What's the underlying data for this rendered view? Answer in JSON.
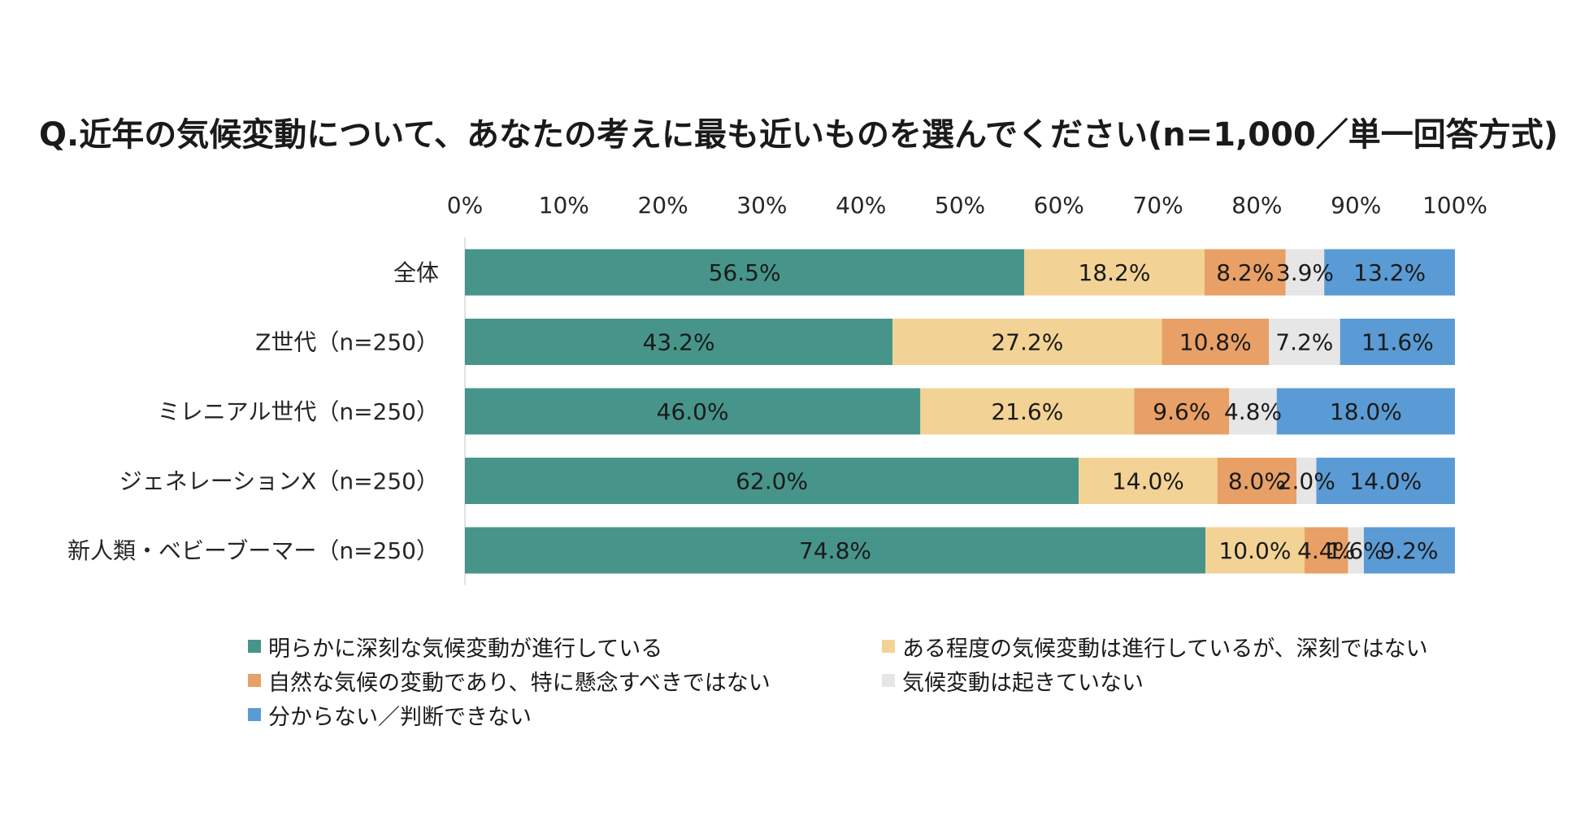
{
  "chart_data": {
    "type": "bar",
    "orientation": "horizontal-stacked-100",
    "title": "Q.近年の気候変動について、あなたの考えに最も近いものを選んでください(n=1,000／単一回答方式)",
    "xlim": [
      0,
      100
    ],
    "x_ticks": [
      "0%",
      "10%",
      "20%",
      "30%",
      "40%",
      "50%",
      "60%",
      "70%",
      "80%",
      "90%",
      "100%"
    ],
    "categories": [
      "全体",
      "Z世代（n=250）",
      "ミレニアル世代（n=250）",
      "ジェネレーションX（n=250）",
      "新人類・ベビーブーマー（n=250）"
    ],
    "series": [
      {
        "name": "明らかに深刻な気候変動が進行している",
        "color": "#47958a",
        "values": [
          56.5,
          43.2,
          46.0,
          62.0,
          74.8
        ],
        "labels": [
          "56.5%",
          "43.2%",
          "46.0%",
          "62.0%",
          "74.8%"
        ]
      },
      {
        "name": "ある程度の気候変動は進行しているが、深刻ではない",
        "color": "#f3d395",
        "values": [
          18.2,
          27.2,
          21.6,
          14.0,
          10.0
        ],
        "labels": [
          "18.2%",
          "27.2%",
          "21.6%",
          "14.0%",
          "10.0%"
        ]
      },
      {
        "name": "自然な気候の変動であり、特に懸念すべきではない",
        "color": "#e8a066",
        "values": [
          8.2,
          10.8,
          9.6,
          8.0,
          4.4
        ],
        "labels": [
          "8.2%",
          "10.8%",
          "9.6%",
          "8.0%",
          "4.4%"
        ]
      },
      {
        "name": "気候変動は起きていない",
        "color": "#e6e6e6",
        "values": [
          3.9,
          7.2,
          4.8,
          2.0,
          1.6
        ],
        "labels": [
          "3.9%",
          "7.2%",
          "4.8%",
          "2.0%",
          "1.6%"
        ]
      },
      {
        "name": "分からない／判断できない",
        "color": "#5b9bd5",
        "values": [
          13.2,
          11.6,
          18.0,
          14.0,
          9.2
        ],
        "labels": [
          "13.2%",
          "11.6%",
          "18.0%",
          "14.0%",
          "9.2%"
        ]
      }
    ],
    "legend_position": "bottom"
  }
}
